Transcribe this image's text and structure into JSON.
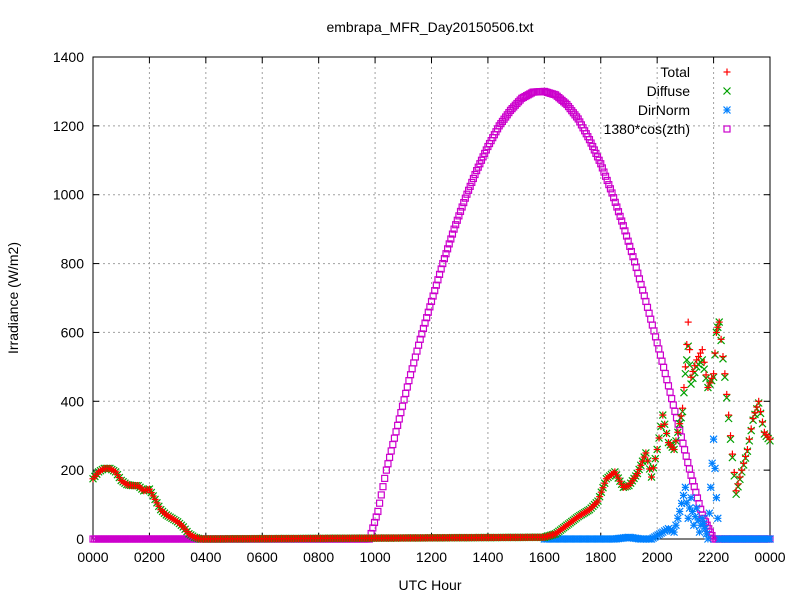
{
  "chart_data": {
    "type": "scatter",
    "title": "embrapa_MFR_Day20150506.txt",
    "xlabel": "UTC Hour",
    "ylabel": "Irradiance (W/m2)",
    "xlim": [
      0,
      24
    ],
    "ylim": [
      0,
      1400
    ],
    "grid": true,
    "legend_position": "top-right",
    "x_ticks": [
      "0000",
      "0200",
      "0400",
      "0600",
      "0800",
      "1000",
      "1200",
      "1400",
      "1600",
      "1800",
      "2000",
      "2200",
      "0000"
    ],
    "y_ticks": [
      "0",
      "200",
      "400",
      "600",
      "800",
      "1000",
      "1200",
      "1400"
    ],
    "series": [
      {
        "name": "Total",
        "marker": "+",
        "color": "#ff0000",
        "x": [
          0.0,
          0.2,
          0.4,
          0.6,
          0.8,
          1.0,
          1.2,
          1.4,
          1.6,
          1.8,
          2.0,
          2.2,
          2.4,
          2.6,
          2.8,
          3.0,
          3.2,
          3.4,
          3.6,
          3.8,
          16.0,
          16.4,
          16.8,
          17.2,
          17.6,
          17.9,
          18.2,
          18.5,
          18.8,
          19.0,
          19.3,
          19.6,
          19.8,
          20.0,
          20.2,
          20.4,
          20.6,
          20.8,
          20.9,
          21.0,
          21.1,
          21.2,
          21.4,
          21.6,
          21.8,
          22.0,
          22.1,
          22.2,
          22.4,
          22.6,
          22.8,
          23.0,
          23.2,
          23.4,
          23.6,
          23.8,
          24.0
        ],
        "y": [
          175,
          195,
          205,
          205,
          195,
          170,
          158,
          155,
          155,
          140,
          145,
          115,
          85,
          70,
          60,
          50,
          35,
          15,
          5,
          0,
          5,
          15,
          40,
          65,
          85,
          110,
          175,
          195,
          150,
          155,
          190,
          250,
          180,
          260,
          360,
          280,
          260,
          335,
          380,
          500,
          630,
          470,
          520,
          550,
          440,
          480,
          600,
          630,
          480,
          300,
          140,
          200,
          260,
          350,
          400,
          310,
          290
        ]
      },
      {
        "name": "Diffuse",
        "marker": "×",
        "color": "#00a000",
        "x": [
          0.0,
          0.2,
          0.4,
          0.6,
          0.8,
          1.0,
          1.2,
          1.4,
          1.6,
          1.8,
          2.0,
          2.2,
          2.4,
          2.6,
          2.8,
          3.0,
          3.2,
          3.4,
          3.6,
          3.8,
          16.0,
          16.4,
          16.8,
          17.2,
          17.6,
          17.9,
          18.2,
          18.5,
          18.8,
          19.0,
          19.3,
          19.6,
          19.8,
          20.0,
          20.2,
          20.4,
          20.6,
          20.8,
          20.9,
          21.0,
          21.1,
          21.2,
          21.4,
          21.6,
          21.8,
          22.0,
          22.1,
          22.2,
          22.4,
          22.6,
          22.8,
          23.0,
          23.2,
          23.4,
          23.6,
          23.8,
          24.0
        ],
        "y": [
          175,
          195,
          205,
          205,
          195,
          170,
          158,
          155,
          155,
          140,
          145,
          115,
          85,
          70,
          60,
          50,
          35,
          15,
          5,
          0,
          5,
          15,
          40,
          65,
          85,
          110,
          175,
          195,
          150,
          155,
          190,
          250,
          180,
          260,
          360,
          280,
          260,
          335,
          370,
          480,
          560,
          450,
          500,
          520,
          440,
          470,
          600,
          630,
          470,
          290,
          130,
          195,
          255,
          345,
          395,
          305,
          285
        ]
      },
      {
        "name": "DirNorm",
        "marker": "✱",
        "color": "#0080ff",
        "x": [
          16.0,
          16.5,
          17.0,
          17.5,
          18.0,
          18.5,
          19.0,
          19.4,
          19.8,
          20.2,
          20.4,
          20.6,
          20.8,
          21.0,
          21.1,
          21.2,
          21.3,
          21.4,
          21.5,
          21.6,
          21.7,
          21.8,
          21.9,
          22.0,
          22.1,
          22.2,
          22.5,
          23.0,
          23.5,
          24.0
        ],
        "y": [
          0,
          0,
          0,
          0,
          0,
          0,
          5,
          0,
          0,
          20,
          30,
          20,
          80,
          150,
          60,
          120,
          40,
          90,
          20,
          60,
          30,
          0,
          150,
          290,
          120,
          0,
          0,
          0,
          0,
          0
        ]
      },
      {
        "name": "1380*cos(zth)",
        "marker": "□",
        "color": "#cc00cc",
        "x": [
          0,
          2,
          4,
          6,
          8,
          9.8,
          10.1,
          10.4,
          10.8,
          11.2,
          11.6,
          12,
          12.4,
          12.8,
          13.2,
          13.6,
          14,
          14.4,
          14.8,
          15.2,
          15.6,
          16,
          16.4,
          16.8,
          17.2,
          17.6,
          18,
          18.4,
          18.8,
          19.2,
          19.6,
          20,
          20.4,
          20.8,
          21.2,
          21.6,
          22.0,
          22.4,
          23,
          24
        ],
        "y": [
          0,
          0,
          0,
          0,
          0,
          0,
          80,
          200,
          330,
          460,
          580,
          690,
          800,
          900,
          990,
          1070,
          1140,
          1200,
          1245,
          1280,
          1298,
          1300,
          1290,
          1262,
          1220,
          1160,
          1090,
          1005,
          910,
          805,
          690,
          570,
          445,
          315,
          185,
          70,
          0,
          0,
          0,
          0
        ]
      }
    ]
  }
}
